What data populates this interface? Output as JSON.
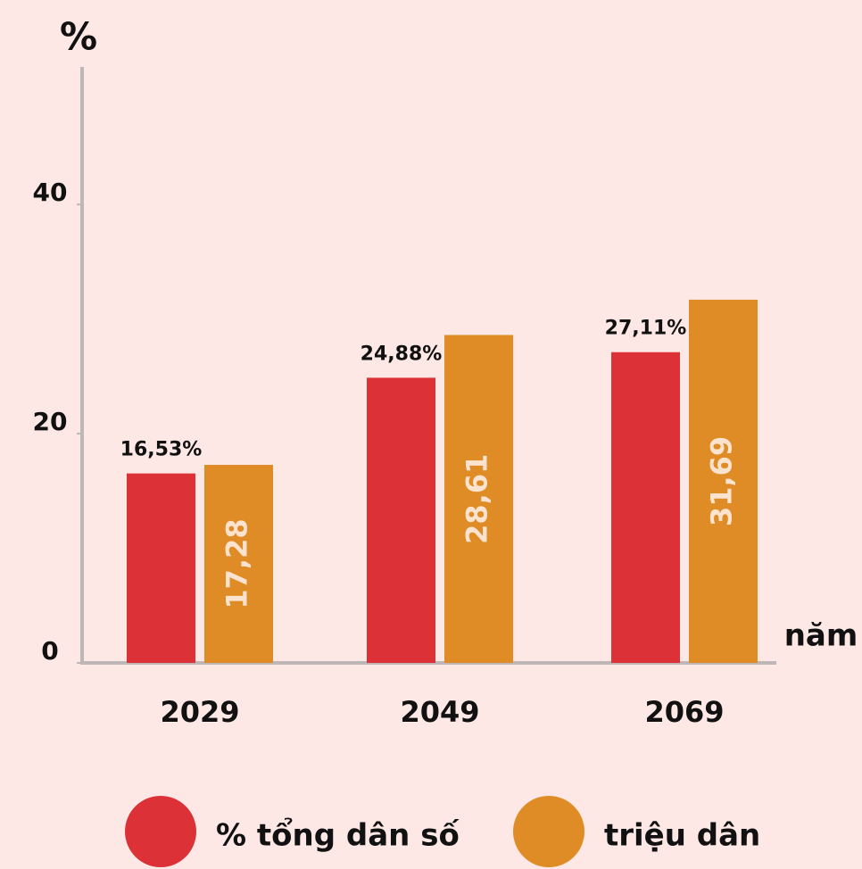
{
  "chart_data": {
    "type": "bar",
    "y_label": "%",
    "x_label": "năm",
    "categories": [
      "2029",
      "2049",
      "2069"
    ],
    "series": [
      {
        "name": "% tổng dân số",
        "color": "#dc3237",
        "values": [
          16.53,
          24.88,
          27.11
        ],
        "value_labels": [
          "16,53%",
          "24,88%",
          "27,11%"
        ]
      },
      {
        "name": "triệu dân",
        "color": "#e08c26",
        "values": [
          17.28,
          28.61,
          31.69
        ],
        "value_labels": [
          "17,28",
          "28,61",
          "31,69"
        ]
      }
    ],
    "ylim": [
      0,
      52
    ],
    "yticks": [
      0,
      20,
      40
    ]
  }
}
